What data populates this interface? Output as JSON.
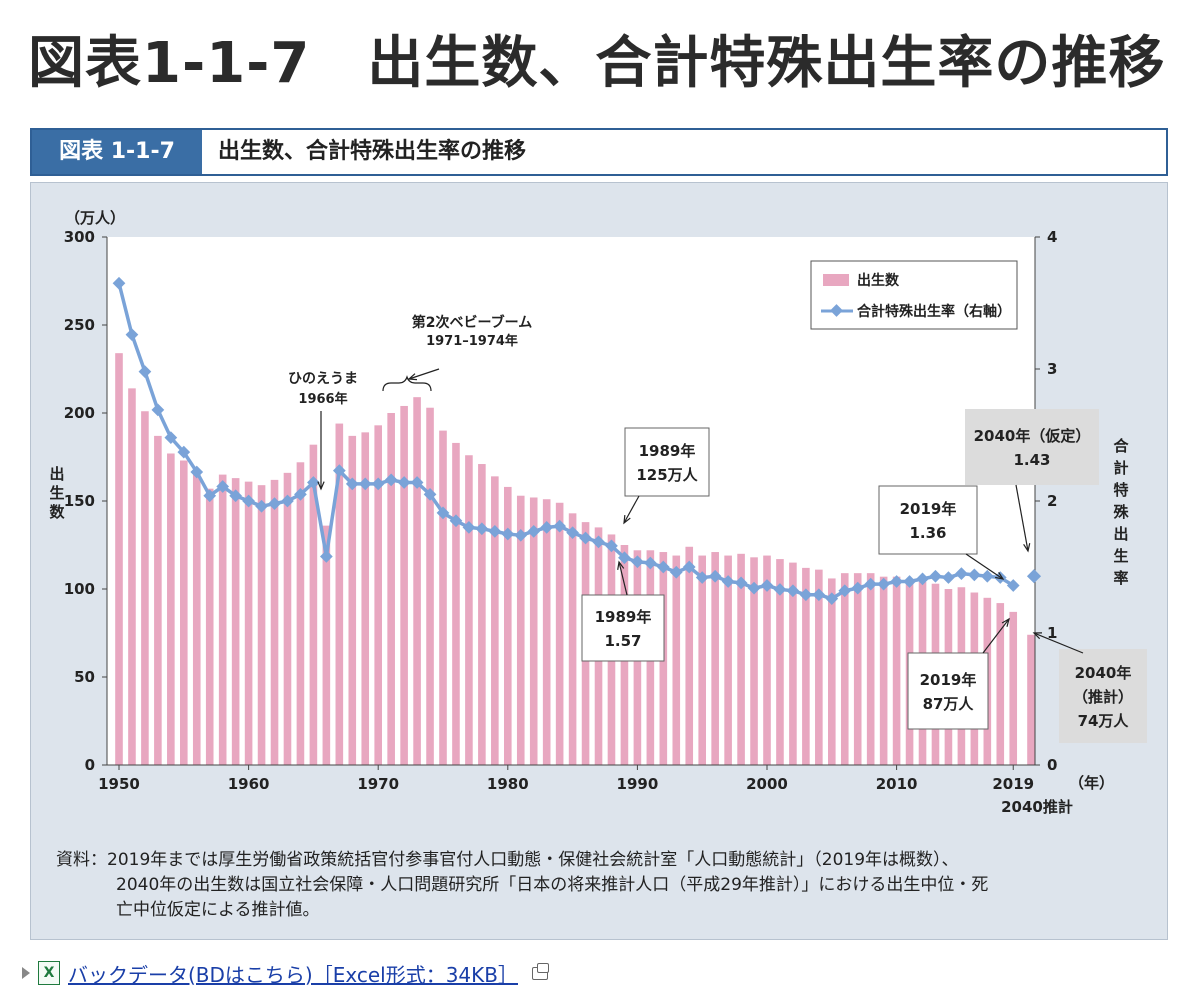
{
  "page": {
    "title": "図表1-1-7　出生数、合計特殊出生率の推移"
  },
  "figure": {
    "tag": "図表 1-1-7",
    "name": "出生数、合計特殊出生率の推移"
  },
  "chart_data": {
    "type": "bar+line",
    "y_left": {
      "label": "出生数",
      "unit": "（万人）",
      "ylim": [
        0,
        300
      ],
      "ticks": [
        "0",
        "50",
        "100",
        "150",
        "200",
        "250",
        "300"
      ]
    },
    "y_right": {
      "label": "合計特殊出生率",
      "ylim": [
        0,
        4
      ],
      "ticks": [
        "0",
        "1",
        "2",
        "3",
        "4"
      ]
    },
    "x": {
      "unit": "（年）",
      "tick_labels": [
        "1950",
        "1960",
        "1970",
        "1980",
        "1990",
        "2000",
        "2010",
        "2019",
        "2040推計"
      ]
    },
    "legend": {
      "position": "top-right",
      "bar_label": "出生数",
      "line_label": "合計特殊出生率（右軸）"
    },
    "colors": {
      "bar": "#e8a7c0",
      "line": "#7aa3d8",
      "marker": "#7aa3d8",
      "plot_bg": "#ffffff",
      "panel_bg": "#dde4ec"
    },
    "years": [
      1950,
      1951,
      1952,
      1953,
      1954,
      1955,
      1956,
      1957,
      1958,
      1959,
      1960,
      1961,
      1962,
      1963,
      1964,
      1965,
      1966,
      1967,
      1968,
      1969,
      1970,
      1971,
      1972,
      1973,
      1974,
      1975,
      1976,
      1977,
      1978,
      1979,
      1980,
      1981,
      1982,
      1983,
      1984,
      1985,
      1986,
      1987,
      1988,
      1989,
      1990,
      1991,
      1992,
      1993,
      1994,
      1995,
      1996,
      1997,
      1998,
      1999,
      2000,
      2001,
      2002,
      2003,
      2004,
      2005,
      2006,
      2007,
      2008,
      2009,
      2010,
      2011,
      2012,
      2013,
      2014,
      2015,
      2016,
      2017,
      2018,
      2019
    ],
    "births": [
      234,
      214,
      201,
      187,
      177,
      173,
      167,
      157,
      165,
      163,
      161,
      159,
      162,
      166,
      172,
      182,
      136,
      194,
      187,
      189,
      193,
      200,
      204,
      209,
      203,
      190,
      183,
      176,
      171,
      164,
      158,
      153,
      152,
      151,
      149,
      143,
      138,
      135,
      131,
      125,
      122,
      122,
      121,
      119,
      124,
      119,
      121,
      119,
      120,
      118,
      119,
      117,
      115,
      112,
      111,
      106,
      109,
      109,
      109,
      107,
      107,
      105,
      104,
      103,
      100,
      101,
      98,
      95,
      92,
      87
    ],
    "tfr": [
      3.65,
      3.26,
      2.98,
      2.69,
      2.48,
      2.37,
      2.22,
      2.04,
      2.11,
      2.04,
      2.0,
      1.96,
      1.98,
      2.0,
      2.05,
      2.14,
      1.58,
      2.23,
      2.13,
      2.13,
      2.13,
      2.16,
      2.14,
      2.14,
      2.05,
      1.91,
      1.85,
      1.8,
      1.79,
      1.77,
      1.75,
      1.74,
      1.77,
      1.8,
      1.81,
      1.76,
      1.72,
      1.69,
      1.66,
      1.57,
      1.54,
      1.53,
      1.5,
      1.46,
      1.5,
      1.42,
      1.43,
      1.39,
      1.38,
      1.34,
      1.36,
      1.33,
      1.32,
      1.29,
      1.29,
      1.26,
      1.32,
      1.34,
      1.37,
      1.37,
      1.39,
      1.39,
      1.41,
      1.43,
      1.42,
      1.45,
      1.44,
      1.43,
      1.42,
      1.36
    ],
    "projection": {
      "year_label": "2040推計",
      "births": 74,
      "tfr": 1.43
    },
    "annotations": {
      "hinoeuma": {
        "line1": "ひのえうま",
        "line2": "1966年"
      },
      "boom": {
        "line1": "第2次ベビーブーム",
        "line2": "1971–1974年"
      },
      "b1989": {
        "line1": "1989年",
        "line2": "125万人"
      },
      "t1989": {
        "line1": "1989年",
        "line2": "1.57"
      },
      "t2019": {
        "line1": "2019年",
        "line2": "1.36"
      },
      "b2019": {
        "line1": "2019年",
        "line2": "87万人"
      },
      "t2040": {
        "line1": "2040年（仮定）",
        "line2": "1.43"
      },
      "b2040": {
        "line1": "2040年",
        "line2": "（推計）",
        "line3": "74万人"
      }
    }
  },
  "source": {
    "line1": "資料：2019年までは厚生労働省政策統括官付参事官付人口動態・保健社会統計室「人口動態統計」（2019年は概数）、",
    "line2": "2040年の出生数は国立社会保障・人口問題研究所「日本の将来推計人口（平成29年推計）」における出生中位・死",
    "line3": "亡中位仮定による推計値。"
  },
  "footer": {
    "link_text": "バックデータ(BDはこちら)［Excel形式：34KB］",
    "file_icon": "excel-icon",
    "external_icon": "external-window-icon"
  }
}
